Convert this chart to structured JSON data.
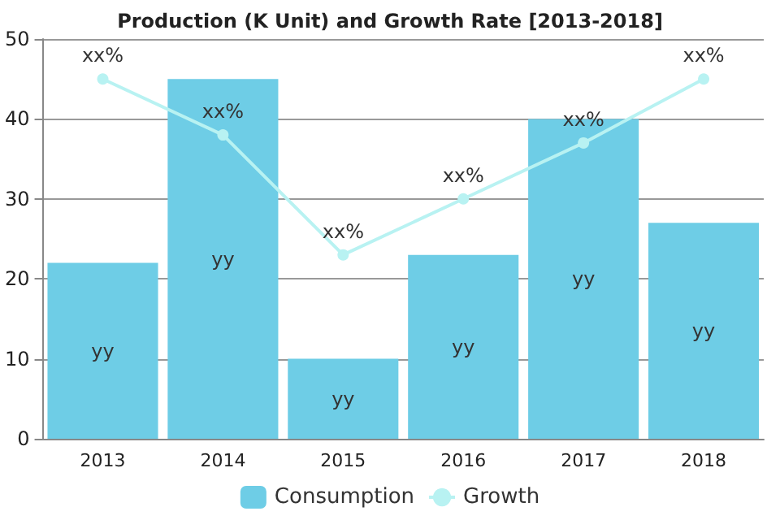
{
  "chart_data": {
    "type": "bar",
    "title": "Production (K Unit) and Growth Rate [2013-2018]",
    "categories": [
      "2013",
      "2014",
      "2015",
      "2016",
      "2017",
      "2018"
    ],
    "series": [
      {
        "name": "Consumption",
        "color": "#6ecde6",
        "values": [
          22,
          45,
          10,
          23,
          40,
          27
        ],
        "value_labels": [
          "yy",
          "yy",
          "yy",
          "yy",
          "yy",
          "yy"
        ]
      },
      {
        "name": "Growth",
        "type": "line",
        "color": "#b8f2f2",
        "values": [
          45,
          38,
          23,
          30,
          37,
          45
        ],
        "value_labels": [
          "xx%",
          "xx%",
          "xx%",
          "xx%",
          "xx%",
          "xx%"
        ],
        "marker": "circle"
      }
    ],
    "ylim": [
      0,
      50
    ],
    "yticks": [
      0,
      10,
      20,
      30,
      40,
      50
    ],
    "grid": "y",
    "legend": "bottom"
  }
}
